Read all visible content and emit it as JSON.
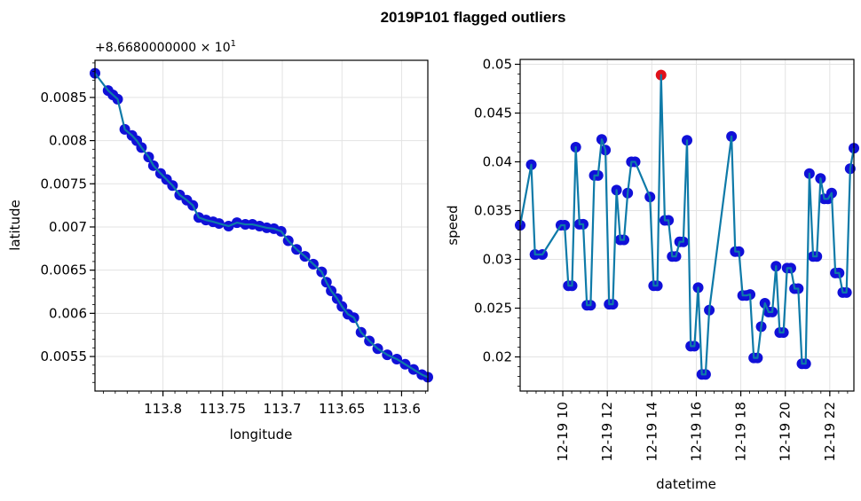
{
  "title": "2019P101 flagged outliers",
  "colors": {
    "line": "#0e7aa8",
    "marker": "#1010d8",
    "outlier": "#e0101a"
  },
  "chart_data": [
    {
      "type": "line",
      "xlabel": "longitude",
      "ylabel": "latitude",
      "offset_label": "+8.6680000000 × 10",
      "offset_exponent": "1",
      "x_inverted": true,
      "xlim": [
        113.857,
        113.578
      ],
      "ylim": [
        0.0051,
        0.00893
      ],
      "grid": true,
      "xticks": [
        113.8,
        113.75,
        113.7,
        113.65,
        113.6
      ],
      "xtick_labels": [
        "113.8",
        "113.75",
        "113.7",
        "113.65",
        "113.6"
      ],
      "yticks": [
        0.0055,
        0.006,
        0.0065,
        0.007,
        0.0075,
        0.008,
        0.0085
      ],
      "ytick_labels": [
        "0.0055",
        "0.006",
        "0.0065",
        "0.007",
        "0.0075",
        "0.008",
        "0.0085"
      ],
      "x": [
        113.857,
        113.846,
        113.842,
        113.838,
        113.832,
        113.826,
        113.822,
        113.818,
        113.812,
        113.808,
        113.802,
        113.797,
        113.792,
        113.786,
        113.78,
        113.775,
        113.77,
        113.764,
        113.758,
        113.753,
        113.745,
        113.738,
        113.731,
        113.725,
        113.719,
        113.713,
        113.707,
        113.701,
        113.695,
        113.688,
        113.681,
        113.674,
        113.667,
        113.663,
        113.659,
        113.654,
        113.65,
        113.645,
        113.64,
        113.634,
        113.627,
        113.62,
        113.612,
        113.604,
        113.597,
        113.59,
        113.583,
        113.578
      ],
      "y": [
        0.00878,
        0.00858,
        0.00853,
        0.00848,
        0.00813,
        0.00806,
        0.008,
        0.00792,
        0.00781,
        0.00771,
        0.00762,
        0.00755,
        0.00748,
        0.00737,
        0.00731,
        0.00725,
        0.00711,
        0.00708,
        0.00706,
        0.00704,
        0.00701,
        0.00705,
        0.00703,
        0.00703,
        0.00701,
        0.00699,
        0.00698,
        0.00695,
        0.00684,
        0.00674,
        0.00666,
        0.00657,
        0.00648,
        0.00636,
        0.00626,
        0.00617,
        0.00608,
        0.00599,
        0.00595,
        0.00578,
        0.00568,
        0.00559,
        0.00552,
        0.00547,
        0.00541,
        0.00535,
        0.00529,
        0.00526
      ]
    },
    {
      "type": "line",
      "xlabel": "datetime",
      "ylabel": "speed",
      "xlim": [
        "2019-12-19 08:05",
        "2019-12-19 23:05"
      ],
      "ylim": [
        0.0165,
        0.0505
      ],
      "grid": true,
      "xticks": [
        "2019-12-19 10:00",
        "2019-12-19 12:00",
        "2019-12-19 14:00",
        "2019-12-19 16:00",
        "2019-12-19 18:00",
        "2019-12-19 20:00",
        "2019-12-19 22:00"
      ],
      "xtick_labels": [
        "12-19 10",
        "12-19 12",
        "12-19 14",
        "12-19 16",
        "12-19 18",
        "12-19 20",
        "12-19 22"
      ],
      "yticks": [
        0.02,
        0.025,
        0.03,
        0.035,
        0.04,
        0.045,
        0.05
      ],
      "ytick_labels": [
        "0.02",
        "0.025",
        "0.03",
        "0.035",
        "0.04",
        "0.045",
        "0.05"
      ],
      "x": [
        "2019-12-19 08:05",
        "2019-12-19 08:35",
        "2019-12-19 08:45",
        "2019-12-19 09:05",
        "2019-12-19 09:55",
        "2019-12-19 10:05",
        "2019-12-19 10:15",
        "2019-12-19 10:25",
        "2019-12-19 10:35",
        "2019-12-19 10:45",
        "2019-12-19 10:55",
        "2019-12-19 11:05",
        "2019-12-19 11:15",
        "2019-12-19 11:25",
        "2019-12-19 11:35",
        "2019-12-19 11:45",
        "2019-12-19 11:55",
        "2019-12-19 12:05",
        "2019-12-19 12:15",
        "2019-12-19 12:25",
        "2019-12-19 12:35",
        "2019-12-19 12:45",
        "2019-12-19 12:55",
        "2019-12-19 13:05",
        "2019-12-19 13:15",
        "2019-12-19 13:55",
        "2019-12-19 14:05",
        "2019-12-19 14:15",
        "2019-12-19 14:25",
        "2019-12-19 14:35",
        "2019-12-19 14:45",
        "2019-12-19 14:55",
        "2019-12-19 15:05",
        "2019-12-19 15:15",
        "2019-12-19 15:25",
        "2019-12-19 15:35",
        "2019-12-19 15:45",
        "2019-12-19 15:55",
        "2019-12-19 16:05",
        "2019-12-19 16:15",
        "2019-12-19 16:25",
        "2019-12-19 16:35",
        "2019-12-19 17:35",
        "2019-12-19 17:45",
        "2019-12-19 17:55",
        "2019-12-19 18:05",
        "2019-12-19 18:15",
        "2019-12-19 18:25",
        "2019-12-19 18:35",
        "2019-12-19 18:45",
        "2019-12-19 18:55",
        "2019-12-19 19:05",
        "2019-12-19 19:15",
        "2019-12-19 19:25",
        "2019-12-19 19:35",
        "2019-12-19 19:45",
        "2019-12-19 19:55",
        "2019-12-19 20:05",
        "2019-12-19 20:15",
        "2019-12-19 20:25",
        "2019-12-19 20:35",
        "2019-12-19 20:45",
        "2019-12-19 20:55",
        "2019-12-19 21:05",
        "2019-12-19 21:15",
        "2019-12-19 21:25",
        "2019-12-19 21:35",
        "2019-12-19 21:45",
        "2019-12-19 21:55",
        "2019-12-19 22:05",
        "2019-12-19 22:15",
        "2019-12-19 22:25",
        "2019-12-19 22:35",
        "2019-12-19 22:45",
        "2019-12-19 22:55",
        "2019-12-19 23:05"
      ],
      "y": [
        0.0335,
        0.0397,
        0.0305,
        0.0305,
        0.0335,
        0.0335,
        0.0273,
        0.0273,
        0.0415,
        0.0336,
        0.0336,
        0.0253,
        0.0253,
        0.0386,
        0.0386,
        0.0423,
        0.0412,
        0.0254,
        0.0254,
        0.0371,
        0.032,
        0.032,
        0.0368,
        0.04,
        0.04,
        0.0364,
        0.0273,
        0.0273,
        0.0489,
        0.034,
        0.034,
        0.0303,
        0.0303,
        0.0318,
        0.0318,
        0.0422,
        0.0211,
        0.0211,
        0.0271,
        0.0182,
        0.0182,
        0.0248,
        0.0426,
        0.0308,
        0.0308,
        0.0263,
        0.0263,
        0.0264,
        0.0199,
        0.0199,
        0.0231,
        0.0255,
        0.0246,
        0.0246,
        0.0293,
        0.0225,
        0.0225,
        0.0291,
        0.0291,
        0.027,
        0.027,
        0.0193,
        0.0193,
        0.0388,
        0.0303,
        0.0303,
        0.0383,
        0.0362,
        0.0362,
        0.0368,
        0.0286,
        0.0286,
        0.0266,
        0.0266,
        0.0393,
        0.0414
      ],
      "outliers": [
        28
      ]
    }
  ]
}
